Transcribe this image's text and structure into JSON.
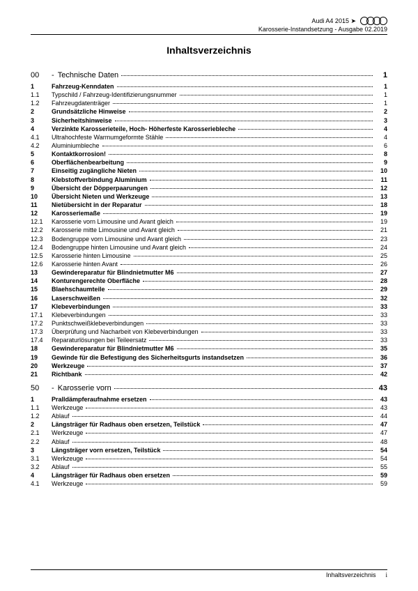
{
  "header": {
    "model": "Audi A4 2015 ➤",
    "line2": "Karosserie-Instandsetzung - Ausgabe 02.2019"
  },
  "title": "Inhaltsverzeichnis",
  "sections": [
    {
      "num": "00",
      "title": "Technische Daten",
      "page": "1",
      "entries": [
        {
          "n": "1",
          "t": "Fahrzeug-Kenndaten",
          "p": "1",
          "b": true
        },
        {
          "n": "1.1",
          "t": "Typschild / Fahrzeug-Identifizierungsnummer",
          "p": "1"
        },
        {
          "n": "1.2",
          "t": "Fahrzeugdatenträger",
          "p": "1"
        },
        {
          "n": "2",
          "t": "Grundsätzliche Hinweise",
          "p": "2",
          "b": true
        },
        {
          "n": "3",
          "t": "Sicherheitshinweise",
          "p": "3",
          "b": true
        },
        {
          "n": "4",
          "t": "Verzinkte Karosserieteile, Hoch- Höherfeste Karosseriebleche",
          "p": "4",
          "b": true
        },
        {
          "n": "4.1",
          "t": "Ultrahochfeste Warmumgeformte Stähle",
          "p": "4"
        },
        {
          "n": "4.2",
          "t": "Aluminiumbleche",
          "p": "6"
        },
        {
          "n": "5",
          "t": "Kontaktkorrosion!",
          "p": "8",
          "b": true
        },
        {
          "n": "6",
          "t": "Oberflächenbearbeitung",
          "p": "9",
          "b": true
        },
        {
          "n": "7",
          "t": "Einseitig zugängliche Nieten",
          "p": "10",
          "b": true
        },
        {
          "n": "8",
          "t": "Klebstoffverbindung Aluminium",
          "p": "11",
          "b": true
        },
        {
          "n": "9",
          "t": "Übersicht der Döpperpaarungen",
          "p": "12",
          "b": true
        },
        {
          "n": "10",
          "t": "Übersicht Nieten und Werkzeuge",
          "p": "13",
          "b": true
        },
        {
          "n": "11",
          "t": "Nietübersicht in der Reparatur",
          "p": "18",
          "b": true
        },
        {
          "n": "12",
          "t": "Karosseriemaße",
          "p": "19",
          "b": true
        },
        {
          "n": "12.1",
          "t": "Karosserie vorn Limousine und Avant gleich",
          "p": "19"
        },
        {
          "n": "12.2",
          "t": "Karosserie mitte Limousine und Avant gleich",
          "p": "21"
        },
        {
          "n": "12.3",
          "t": "Bodengruppe vorn Limousine und Avant gleich",
          "p": "23"
        },
        {
          "n": "12.4",
          "t": "Bodengruppe hinten Limousine und Avant gleich",
          "p": "24"
        },
        {
          "n": "12.5",
          "t": "Karosserie hinten Limousine",
          "p": "25"
        },
        {
          "n": "12.6",
          "t": "Karosserie hinten Avant",
          "p": "26"
        },
        {
          "n": "13",
          "t": "Gewindereparatur für Blindnietmutter M6",
          "p": "27",
          "b": true
        },
        {
          "n": "14",
          "t": "Konturengerechte Oberfläche",
          "p": "28",
          "b": true
        },
        {
          "n": "15",
          "t": "Blaehschaumteile",
          "p": "29",
          "b": true
        },
        {
          "n": "16",
          "t": "Laserschweißen",
          "p": "32",
          "b": true
        },
        {
          "n": "17",
          "t": "Klebeverbindungen",
          "p": "33",
          "b": true
        },
        {
          "n": "17.1",
          "t": "Klebeverbindungen",
          "p": "33"
        },
        {
          "n": "17.2",
          "t": "Punktschweißklebeverbindungen",
          "p": "33"
        },
        {
          "n": "17.3",
          "t": "Überprüfung und Nacharbeit von Klebeverbindungen",
          "p": "33"
        },
        {
          "n": "17.4",
          "t": "Reparaturlösungen bei Teileersatz",
          "p": "33"
        },
        {
          "n": "18",
          "t": "Gewindereparatur für Blindnietmutter M6",
          "p": "35",
          "b": true
        },
        {
          "n": "19",
          "t": "Gewinde für die Befestigung des Sicherheitsgurts instandsetzen",
          "p": "36",
          "b": true
        },
        {
          "n": "20",
          "t": "Werkzeuge",
          "p": "37",
          "b": true
        },
        {
          "n": "21",
          "t": "Richtbank",
          "p": "42",
          "b": true
        }
      ]
    },
    {
      "num": "50",
      "title": "Karosserie vorn",
      "page": "43",
      "entries": [
        {
          "n": "1",
          "t": "Pralldämpferaufnahme ersetzen",
          "p": "43",
          "b": true
        },
        {
          "n": "1.1",
          "t": "Werkzeuge",
          "p": "43"
        },
        {
          "n": "1.2",
          "t": "Ablauf",
          "p": "44"
        },
        {
          "n": "2",
          "t": "Längsträger für Radhaus oben ersetzen, Teilstück",
          "p": "47",
          "b": true
        },
        {
          "n": "2.1",
          "t": "Werkzeuge",
          "p": "47"
        },
        {
          "n": "2.2",
          "t": "Ablauf",
          "p": "48"
        },
        {
          "n": "3",
          "t": "Längsträger vorn ersetzen, Teilstück",
          "p": "54",
          "b": true
        },
        {
          "n": "3.1",
          "t": "Werkzeuge",
          "p": "54"
        },
        {
          "n": "3.2",
          "t": "Ablauf",
          "p": "55"
        },
        {
          "n": "4",
          "t": "Längsträger für Radhaus oben ersetzen",
          "p": "59",
          "b": true
        },
        {
          "n": "4.1",
          "t": "Werkzeuge",
          "p": "59"
        }
      ]
    }
  ],
  "footer": {
    "label": "Inhaltsverzeichnis",
    "page": "i"
  }
}
